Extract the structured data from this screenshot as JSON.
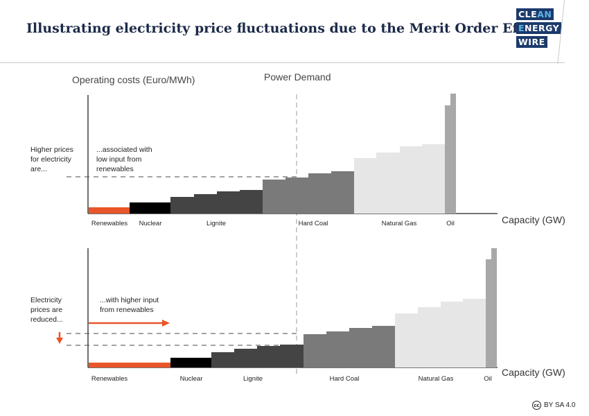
{
  "header": {
    "title": "Illustrating electricity price fluctuations due to the Merit Order Effect",
    "logo": {
      "line1_a": "CLE",
      "line1_b": "AN",
      "line2_a": "E",
      "line2_b": "NERGY",
      "line3": "WIRE"
    }
  },
  "labels": {
    "y_axis": "Operating costs (Euro/MWh)",
    "demand": "Power Demand",
    "x_axis_top": "Capacity (GW)",
    "x_axis_bottom": "Capacity (GW)",
    "top_left_note": [
      "Higher prices",
      "for electricity",
      "are..."
    ],
    "top_inner_note": [
      "...associated with",
      "low input from",
      "renewables"
    ],
    "bottom_left_note": [
      "Electricity",
      "prices are",
      "reduced..."
    ],
    "bottom_inner_note": [
      "...with higher input",
      "from renewables"
    ]
  },
  "colors": {
    "renewables": "#e8562a",
    "nuclear": "#000000",
    "lignite": "#444444",
    "hard_coal": "#7a7a7a",
    "natural_gas": "#e6e6e6",
    "oil": "#a8a8a8",
    "arrow": "#e8562a"
  },
  "chart_data": [
    {
      "type": "bar",
      "panel": "top",
      "categories": [
        "Renewables",
        "Nuclear",
        "Lignite",
        "Hard Coal",
        "Natural Gas",
        "Oil"
      ]
    },
    {
      "type": "bar",
      "panel": "bottom",
      "categories": [
        "Renewables",
        "Nuclear",
        "Lignite",
        "Hard Coal",
        "Natural Gas",
        "Oil"
      ]
    }
  ],
  "license": "BY SA 4.0",
  "license_mark": "cc"
}
